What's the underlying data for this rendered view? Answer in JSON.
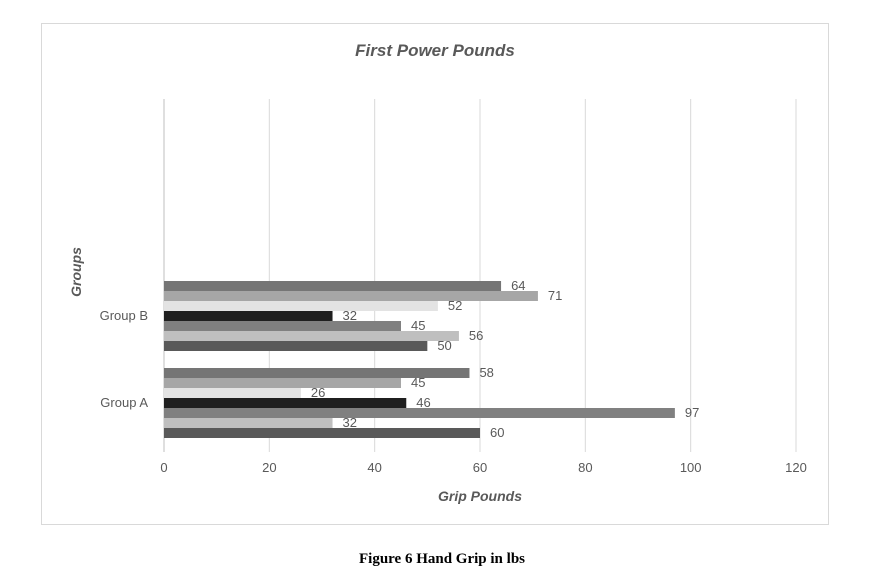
{
  "caption": "Figure 6 Hand Grip in lbs",
  "chart_data": {
    "type": "bar",
    "orientation": "horizontal",
    "title": "First Power Pounds",
    "xlabel": "Grip Pounds",
    "ylabel": "Groups",
    "xlim": [
      0,
      120
    ],
    "xticks": [
      0,
      20,
      40,
      60,
      80,
      100,
      120
    ],
    "grid": true,
    "legend": "none",
    "categories": [
      "Group A",
      "Group B"
    ],
    "series": [
      {
        "values": [
          60,
          50
        ],
        "color": "#595959"
      },
      {
        "values": [
          32,
          56
        ],
        "color": "#bfbfbf"
      },
      {
        "values": [
          97,
          45
        ],
        "color": "#808080"
      },
      {
        "values": [
          46,
          32
        ],
        "color": "#1f1f1f"
      },
      {
        "values": [
          26,
          52
        ],
        "color": "#e3e3e3"
      },
      {
        "values": [
          45,
          71
        ],
        "color": "#a6a6a6"
      },
      {
        "values": [
          58,
          64
        ],
        "color": "#757575"
      }
    ]
  }
}
